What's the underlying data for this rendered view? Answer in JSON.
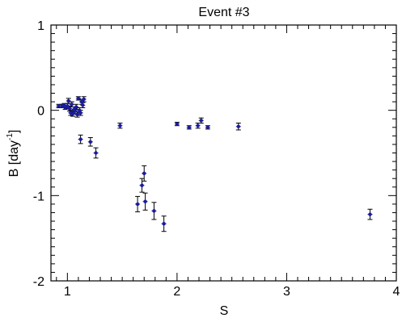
{
  "chart_data": {
    "type": "scatter",
    "title": "Event #3",
    "xlabel": "S",
    "ylabel": "B [day",
    "ylabel_exp": "-1",
    "ylabel_close": "]",
    "xlim": [
      0.85,
      4.0
    ],
    "ylim": [
      -2.0,
      1.0
    ],
    "xticks": [
      1,
      2,
      3,
      4
    ],
    "xtick_labels": [
      "1",
      "2",
      "3",
      "4"
    ],
    "yticks": [
      -2,
      -1,
      0,
      1
    ],
    "ytick_labels": [
      "-2",
      "-1",
      "0",
      "1"
    ],
    "grid": false,
    "marker_color": "#1a1aa0",
    "errorbar_color": "#000000",
    "points": [
      {
        "x": 0.92,
        "y": 0.05,
        "err": 0.02
      },
      {
        "x": 0.95,
        "y": 0.05,
        "err": 0.02
      },
      {
        "x": 0.97,
        "y": 0.06,
        "err": 0.02
      },
      {
        "x": 0.98,
        "y": 0.03,
        "err": 0.02
      },
      {
        "x": 1.0,
        "y": 0.05,
        "err": 0.03
      },
      {
        "x": 1.01,
        "y": 0.11,
        "err": 0.03
      },
      {
        "x": 1.02,
        "y": 0.02,
        "err": 0.03
      },
      {
        "x": 1.03,
        "y": -0.03,
        "err": 0.03
      },
      {
        "x": 1.04,
        "y": 0.07,
        "err": 0.03
      },
      {
        "x": 1.05,
        "y": -0.04,
        "err": 0.03
      },
      {
        "x": 1.06,
        "y": 0.01,
        "err": 0.03
      },
      {
        "x": 1.07,
        "y": -0.01,
        "err": 0.03
      },
      {
        "x": 1.08,
        "y": 0.04,
        "err": 0.03
      },
      {
        "x": 1.09,
        "y": -0.05,
        "err": 0.03
      },
      {
        "x": 1.1,
        "y": 0.14,
        "err": 0.02
      },
      {
        "x": 1.11,
        "y": 0.0,
        "err": 0.03
      },
      {
        "x": 1.12,
        "y": -0.03,
        "err": 0.03
      },
      {
        "x": 1.13,
        "y": 0.1,
        "err": 0.03
      },
      {
        "x": 1.14,
        "y": 0.06,
        "err": 0.03
      },
      {
        "x": 1.15,
        "y": 0.13,
        "err": 0.03
      },
      {
        "x": 1.12,
        "y": -0.34,
        "err": 0.05
      },
      {
        "x": 1.21,
        "y": -0.37,
        "err": 0.05
      },
      {
        "x": 1.26,
        "y": -0.5,
        "err": 0.06
      },
      {
        "x": 1.48,
        "y": -0.18,
        "err": 0.03
      },
      {
        "x": 1.64,
        "y": -1.1,
        "err": 0.09
      },
      {
        "x": 1.68,
        "y": -0.88,
        "err": 0.08
      },
      {
        "x": 1.7,
        "y": -0.74,
        "err": 0.09
      },
      {
        "x": 1.71,
        "y": -1.07,
        "err": 0.1
      },
      {
        "x": 1.79,
        "y": -1.18,
        "err": 0.1
      },
      {
        "x": 1.88,
        "y": -1.33,
        "err": 0.09
      },
      {
        "x": 2.0,
        "y": -0.16,
        "err": 0.02
      },
      {
        "x": 2.11,
        "y": -0.2,
        "err": 0.02
      },
      {
        "x": 2.19,
        "y": -0.18,
        "err": 0.03
      },
      {
        "x": 2.22,
        "y": -0.12,
        "err": 0.03
      },
      {
        "x": 2.28,
        "y": -0.2,
        "err": 0.02
      },
      {
        "x": 2.56,
        "y": -0.19,
        "err": 0.04
      },
      {
        "x": 3.76,
        "y": -1.22,
        "err": 0.06
      }
    ]
  }
}
